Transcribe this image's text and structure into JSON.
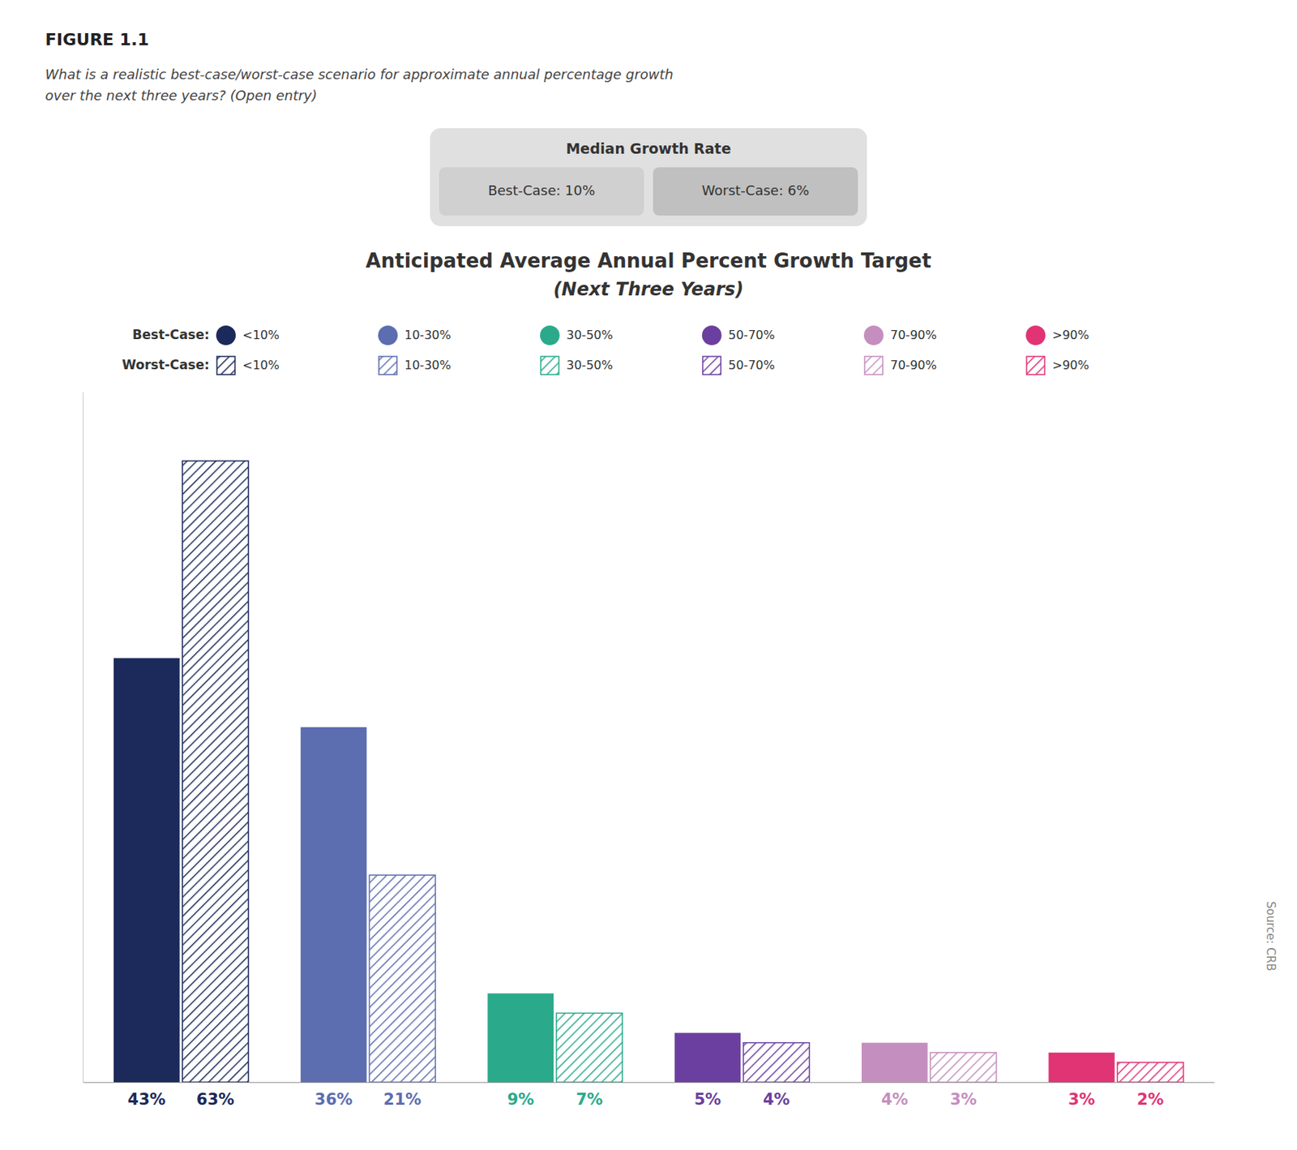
{
  "chart_data": {
    "type": "bar",
    "title": "Anticipated Average Annual Percent Growth Target",
    "subtitle": "(Next Three Years)",
    "categories": [
      "<10%",
      "10-30%",
      "30-50%",
      "50-70%",
      "70-90%",
      ">90%"
    ],
    "series": [
      {
        "name": "Best-Case:",
        "colors": [
          "#1b2a5a",
          "#5c6db0",
          "#2aaa8a",
          "#6b3fa0",
          "#c48fbe",
          "#e03475"
        ],
        "values": [
          43,
          36,
          9,
          5,
          4,
          3
        ],
        "value_labels": [
          "43%",
          "36%",
          "9%",
          "5%",
          "4%",
          "3%"
        ]
      },
      {
        "name": "Worst-Case:",
        "colors": [
          "#1b2a5a",
          "#5c6db0",
          "#2aaa8a",
          "#6b3fa0",
          "#c48fbe",
          "#e03475"
        ],
        "values": [
          63,
          21,
          7,
          4,
          3,
          2
        ],
        "value_labels": [
          "63%",
          "21%",
          "7%",
          "4%",
          "3%",
          "2%"
        ]
      }
    ],
    "ylim": [
      0,
      70
    ],
    "grid": false,
    "tick_labels": false,
    "data_labels": true,
    "annotations": [
      "FIGURE 1.1",
      "What is a realistic best-case/worst-case scenario for approximate annual percentage growth\nover the next three years? (Open entry)",
      "Median Growth Rate",
      "Best-Case: 10%",
      "Worst-Case: 6%",
      "Source: CRB"
    ]
  }
}
